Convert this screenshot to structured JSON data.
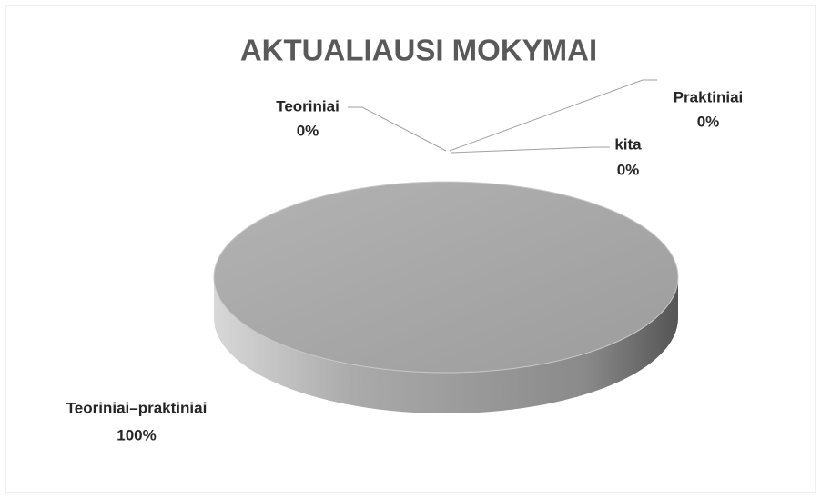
{
  "chart_data": {
    "type": "pie",
    "title": "AKTUALIAUSI MOKYMAI",
    "categories": [
      "Teoriniai",
      "Praktiniai",
      "kita",
      "Teoriniai–praktiniai"
    ],
    "values": [
      0,
      0,
      0,
      100
    ],
    "value_labels": [
      "0%",
      "0%",
      "0%",
      "100%"
    ],
    "colors": [
      "#4f81bd",
      "#c0504d",
      "#9bbb59",
      "#a6a6a6"
    ]
  }
}
